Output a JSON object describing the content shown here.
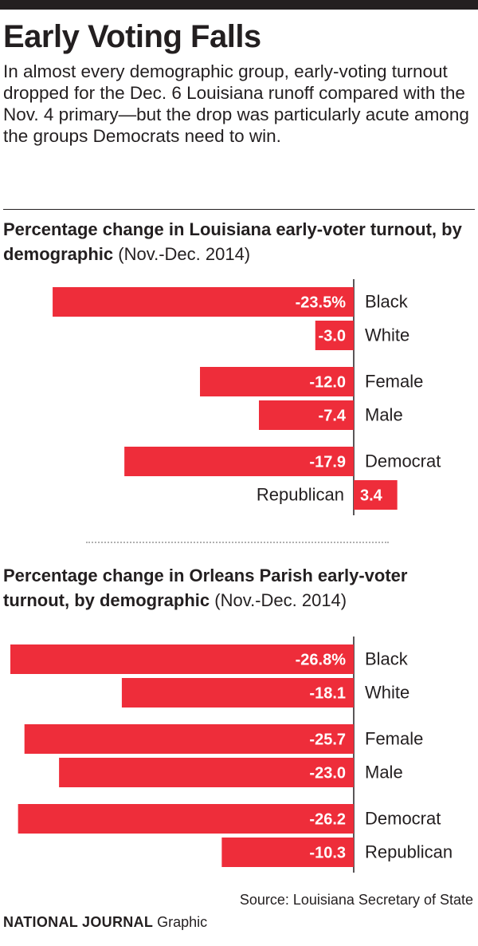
{
  "header": {
    "title": "Early Voting Falls",
    "intro": "In almost every demographic group, early-voting turnout dropped for the Dec. 6 Louisiana runoff compared with the Nov. 4 primary—but the drop was particularly acute among the groups Democrats need to win."
  },
  "footer": {
    "source": "Source: Louisiana Secretary of State",
    "brand": "NATIONAL JOURNAL",
    "brand_suffix": "Graphic"
  },
  "colors": {
    "bar": "#ee2d3a",
    "text": "#231f20",
    "axis": "#231f20"
  },
  "chart_data": [
    {
      "type": "bar",
      "orientation": "horizontal",
      "title": "Percentage change in Louisiana early-voter turnout, by demographic",
      "subtitle": "(Nov.-Dec. 2014)",
      "categories": [
        "Black",
        "White",
        "Female",
        "Male",
        "Democrat",
        "Republican"
      ],
      "values": [
        -23.5,
        -3.0,
        -12.0,
        -7.4,
        -17.9,
        3.4
      ],
      "value_labels": [
        "-23.5%",
        "-3.0",
        "-12.0",
        "-7.4",
        "-17.9",
        "3.4"
      ],
      "groups": [
        [
          "Black",
          "White"
        ],
        [
          "Female",
          "Male"
        ],
        [
          "Democrat",
          "Republican"
        ]
      ],
      "xlim": [
        -26.8,
        3.4
      ],
      "unit": "%"
    },
    {
      "type": "bar",
      "orientation": "horizontal",
      "title": "Percentage change in Orleans Parish early-voter turnout, by demographic",
      "subtitle": "(Nov.-Dec. 2014)",
      "categories": [
        "Black",
        "White",
        "Female",
        "Male",
        "Democrat",
        "Republican"
      ],
      "values": [
        -26.8,
        -18.1,
        -25.7,
        -23.0,
        -26.2,
        -10.3
      ],
      "value_labels": [
        "-26.8%",
        "-18.1",
        "-25.7",
        "-23.0",
        "-26.2",
        "-10.3"
      ],
      "groups": [
        [
          "Black",
          "White"
        ],
        [
          "Female",
          "Male"
        ],
        [
          "Democrat",
          "Republican"
        ]
      ],
      "xlim": [
        -26.8,
        3.4
      ],
      "unit": "%"
    }
  ]
}
